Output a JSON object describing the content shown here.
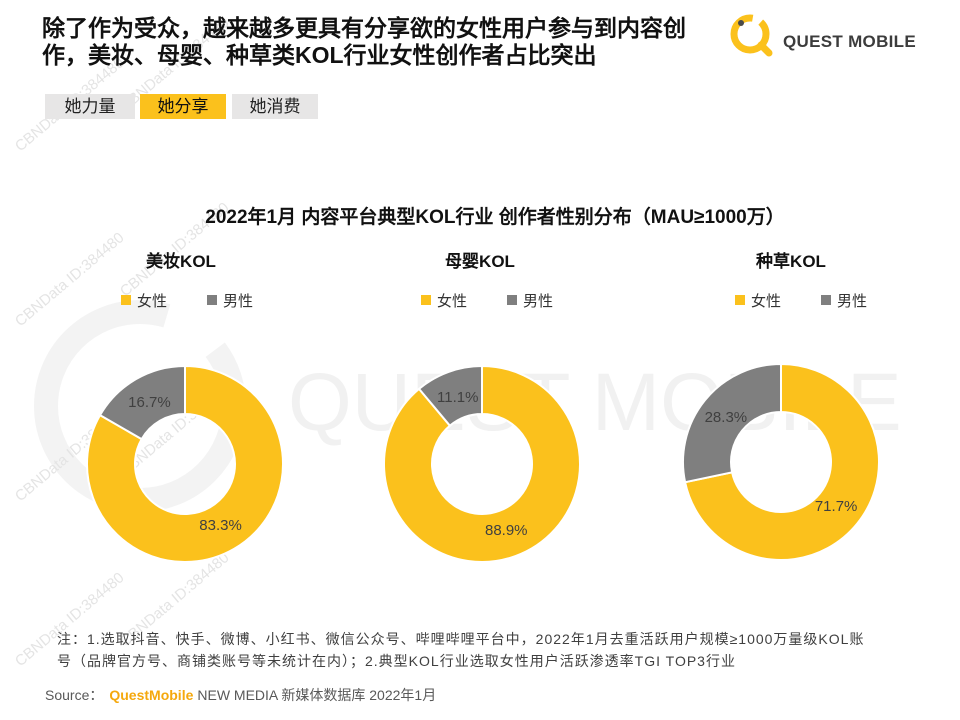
{
  "title": {
    "line1": "除了作为受众，越来越多更具有分享欲的女性用户参与到内容创",
    "line2": "作，美妆、母婴、种草类KOL行业女性创作者占比突出"
  },
  "logo": {
    "text": "QUEST MOBILE",
    "icon": "questmobile-q-icon"
  },
  "tabs": [
    {
      "label": "她力量",
      "active": false
    },
    {
      "label": "她分享",
      "active": true
    },
    {
      "label": "她消费",
      "active": false
    }
  ],
  "chart_section": {
    "title": "2022年1月 内容平台典型KOL行业 创作者性别分布（MAU≥1000万）"
  },
  "chart_data": [
    {
      "type": "pie",
      "title": "美妆KOL",
      "labels": [
        "女性",
        "男性"
      ],
      "values": [
        83.3,
        16.7
      ],
      "unit": "%"
    },
    {
      "type": "pie",
      "title": "母婴KOL",
      "labels": [
        "女性",
        "男性"
      ],
      "values": [
        88.9,
        11.1
      ],
      "unit": "%"
    },
    {
      "type": "pie",
      "title": "种草KOL",
      "labels": [
        "女性",
        "男性"
      ],
      "values": [
        71.7,
        28.3
      ],
      "unit": "%"
    }
  ],
  "note": {
    "line1": "注：1.选取抖音、快手、微博、小红书、微信公众号、哔哩哔哩平台中，2022年1月去重活跃用户规模≥1000万量级KOL账",
    "line2": "号（品牌官方号、商铺类账号等未统计在内）；2.典型KOL行业选取女性用户活跃渗透率TGI TOP3行业"
  },
  "source": {
    "label": "Source：",
    "brand": "QuestMobile",
    "text": "NEW MEDIA 新媒体数据库 2022年1月"
  },
  "watermark": {
    "brand": "QUEST MOBILE",
    "id": "CBNData ID:384480"
  },
  "colors": {
    "accent": "#FBC11C",
    "female": "#FBC11C",
    "male": "#7F7F7F",
    "tab_inactive": "#E7E6E6",
    "source_brand": "#F5A80D"
  }
}
